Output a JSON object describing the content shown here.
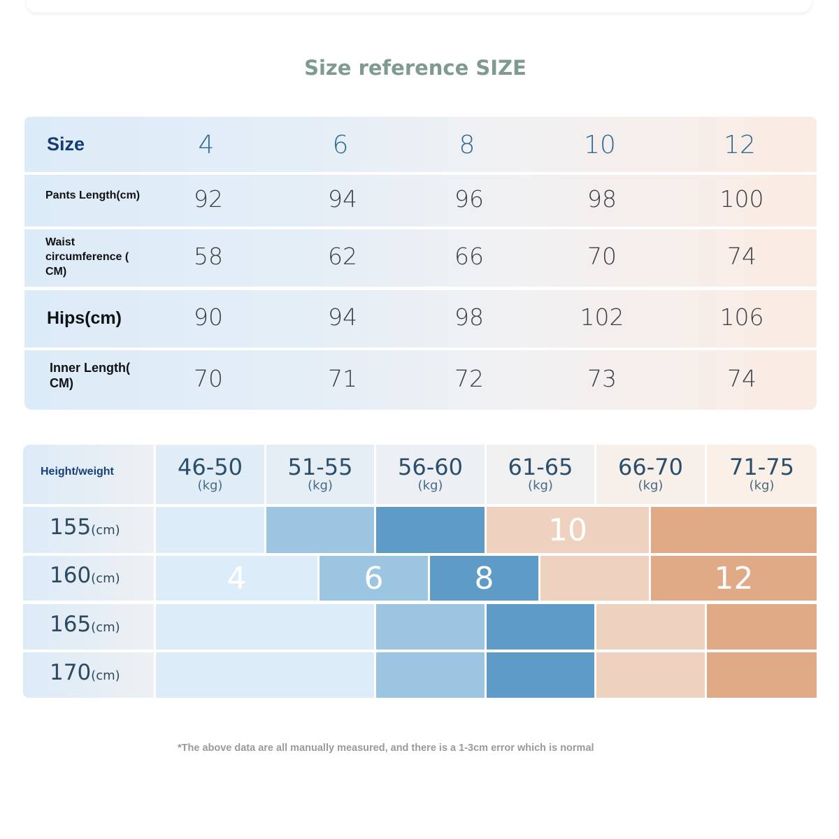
{
  "title": "Size reference SIZE",
  "size_table": {
    "header_label": "Size",
    "sizes": [
      "4",
      "6",
      "8",
      "10",
      "12"
    ],
    "rows": [
      {
        "label": "Pants Length(cm)",
        "values": [
          "92",
          "94",
          "96",
          "98",
          "100"
        ]
      },
      {
        "label": "Waist circumference ( CM)",
        "values": [
          "58",
          "62",
          "66",
          "70",
          "74"
        ]
      },
      {
        "label": "Hips(cm)",
        "values": [
          "90",
          "94",
          "98",
          "102",
          "106"
        ]
      },
      {
        "label": "Inner Length( CM)",
        "values": [
          "70",
          "71",
          "72",
          "73",
          "74"
        ]
      }
    ]
  },
  "fit_table": {
    "header_label": "Height/weight",
    "weights": [
      "46-50",
      "51-55",
      "56-60",
      "61-65",
      "66-70",
      "71-75"
    ],
    "weight_unit": "(kg)",
    "heights": [
      "155",
      "160",
      "165",
      "170"
    ],
    "height_unit": "(cm)",
    "size_labels": [
      "4",
      "6",
      "8",
      "10",
      "12"
    ],
    "colors": {
      "size_4": "#dcecf8",
      "size_6": "#9cc5e1",
      "size_8": "#5e9cc7",
      "size_10": "#eed2bf",
      "size_12": "#dfaa85"
    }
  },
  "footnote": "*The above data are all manually measured, and there is a 1-3cm error which is normal"
}
